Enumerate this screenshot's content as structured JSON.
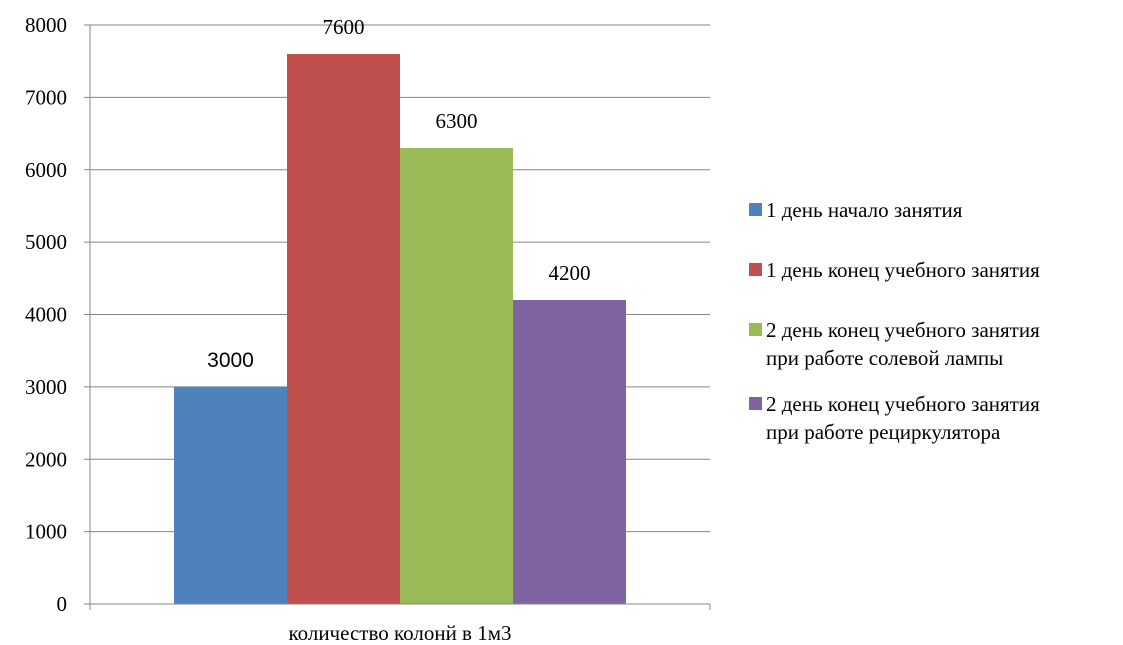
{
  "chart_data": {
    "type": "bar",
    "categories": [
      "количество колонй в 1м3"
    ],
    "series": [
      {
        "name": "1 день начало занятия",
        "values": [
          3000
        ],
        "color": "#4F81BD"
      },
      {
        "name": "1 день конец учебного занятия",
        "values": [
          7600
        ],
        "color": "#C0504D"
      },
      {
        "name": "2 день конец учебного занятия\nпри работе солевой лампы",
        "values": [
          6300
        ],
        "color": "#9BBB59"
      },
      {
        "name": "2 день конец учебного занятия\nпри работе рециркулятора",
        "values": [
          4200
        ],
        "color": "#8064A2"
      }
    ],
    "data_labels": [
      "3000",
      "7600",
      "6300",
      "4200"
    ],
    "title": "",
    "xlabel": "",
    "ylabel": "",
    "ylim": [
      0,
      8000
    ],
    "yticks": [
      0,
      1000,
      2000,
      3000,
      4000,
      5000,
      6000,
      7000,
      8000
    ],
    "grid": true,
    "legend_position": "right"
  }
}
